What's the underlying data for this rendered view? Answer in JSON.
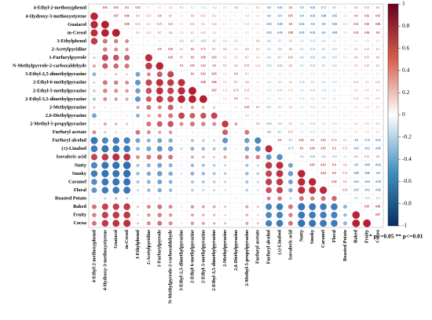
{
  "chart_data": {
    "type": "correlation",
    "variables": [
      "4-Ethyl-2-methoxyphenol",
      "4-Hydroxy-3-methoxystyrene",
      "Guaiacol",
      "m-Cresol",
      "3-Ethylphenol",
      "2-Acetylpyridine",
      "1-Furfurylpyrrole",
      "N-Methylpyrrole-2-carboxaldehyde",
      "3-Ethyl-2,5-dimethylpyrazine",
      "2-Ethyl-6-methylpyrazine",
      "2-Ethyl-5-methylpyrazine",
      "2-Ethyl-3,5-dimethylpyrazine",
      "2-Methylpyrazine",
      "2,6-Diethylpyrazine",
      "2-Methyl-5-propylpyrazine",
      "Furfuryl acetate",
      "Furfuryl alcohol",
      "(±)-Linalool",
      "Isovaleric acid",
      "Nutty",
      "Smoky",
      "Caramel",
      "Floral",
      "Roasted Potato",
      "Baked",
      "Fruity",
      "Cocoa"
    ],
    "matrix": [
      [],
      [
        0.95
      ],
      [
        0.93,
        0.97
      ],
      [
        0.9,
        0.96,
        0.98
      ],
      [
        0.85,
        0.6,
        0.55,
        0.5
      ],
      [
        0.2,
        0.55,
        0.5,
        0.45,
        0.1
      ],
      [
        0.3,
        0.8,
        0.75,
        0.7,
        -0.2,
        0.9
      ],
      [
        0.4,
        0.7,
        0.65,
        0.6,
        0.1,
        0.85,
        0.95
      ],
      [
        -0.5,
        0.2,
        0.3,
        0.25,
        -0.6,
        0.5,
        0.7,
        0.8
      ],
      [
        -0.3,
        0.6,
        0.55,
        0.5,
        -0.7,
        0.8,
        0.9,
        0.85,
        0.9
      ],
      [
        -0.35,
        0.55,
        0.5,
        0.45,
        -0.65,
        0.75,
        0.88,
        0.82,
        0.92,
        0.98
      ],
      [
        -0.4,
        0.5,
        0.45,
        0.4,
        -0.7,
        0.7,
        0.85,
        0.8,
        0.95,
        0.96,
        0.97
      ],
      [
        0.3,
        0.2,
        0.15,
        0.1,
        0.4,
        0.6,
        0.5,
        0.7,
        0.3,
        0.4,
        0.35,
        0.3
      ],
      [
        -0.6,
        0.1,
        0.15,
        0.2,
        -0.5,
        0.4,
        0.5,
        0.6,
        0.8,
        0.7,
        0.75,
        0.8,
        0.2
      ],
      [
        0.2,
        0.4,
        0.35,
        0.3,
        0.1,
        0.6,
        0.7,
        0.75,
        0.5,
        0.6,
        0.55,
        0.5,
        0.85,
        0.4
      ],
      [
        0.5,
        0.3,
        0.25,
        0.2,
        0.6,
        0.5,
        0.4,
        0.45,
        0.1,
        0.2,
        0.15,
        0.1,
        0.7,
        0.2,
        0.6
      ],
      [
        -0.9,
        -0.8,
        -0.85,
        -0.82,
        -0.6,
        -0.5,
        -0.6,
        -0.55,
        -0.2,
        -0.4,
        -0.35,
        -0.3,
        -0.7,
        -0.1,
        -0.65,
        -0.8
      ],
      [
        -0.85,
        -0.9,
        -0.88,
        -0.86,
        -0.5,
        -0.6,
        -0.7,
        -0.65,
        -0.3,
        -0.5,
        -0.45,
        -0.4,
        -0.5,
        -0.2,
        -0.6,
        -0.7,
        0.9
      ],
      [
        0.8,
        0.85,
        0.9,
        0.88,
        0.5,
        0.6,
        0.65,
        0.6,
        0.2,
        0.4,
        0.35,
        0.3,
        0.4,
        0.1,
        0.5,
        0.55,
        -0.7,
        -0.75
      ],
      [
        -0.8,
        -0.9,
        -0.92,
        -0.95,
        -0.4,
        -0.5,
        -0.6,
        -0.5,
        -0.2,
        -0.45,
        -0.4,
        -0.35,
        -0.3,
        -0.1,
        -0.4,
        -0.3,
        0.85,
        0.9,
        -0.6
      ],
      [
        -0.85,
        -0.92,
        -0.9,
        -0.93,
        -0.45,
        -0.55,
        -0.65,
        -0.55,
        -0.25,
        -0.5,
        -0.45,
        -0.4,
        -0.35,
        -0.15,
        -0.45,
        -0.35,
        0.8,
        0.88,
        -0.65,
        0.95
      ],
      [
        -0.75,
        -0.88,
        -0.9,
        -0.9,
        -0.4,
        -0.5,
        -0.6,
        -0.5,
        -0.2,
        -0.4,
        -0.38,
        -0.35,
        -0.3,
        -0.1,
        -0.4,
        -0.3,
        0.82,
        0.85,
        -0.6,
        0.93,
        0.94
      ],
      [
        -0.7,
        -0.85,
        -0.86,
        -0.88,
        -0.3,
        -0.45,
        -0.55,
        -0.45,
        -0.15,
        -0.35,
        -0.3,
        -0.3,
        -0.25,
        -0.05,
        -0.35,
        -0.25,
        0.75,
        0.8,
        -0.55,
        0.9,
        0.9,
        0.92
      ],
      [
        -0.2,
        -0.3,
        -0.35,
        -0.3,
        -0.1,
        -0.2,
        -0.25,
        -0.2,
        0.1,
        -0.1,
        -0.05,
        0,
        -0.1,
        0.2,
        -0.15,
        -0.1,
        0.5,
        0.55,
        -0.3,
        0.6,
        0.55,
        0.6,
        0.65
      ],
      [
        0.6,
        0.8,
        0.82,
        0.85,
        0.3,
        0.5,
        0.6,
        0.5,
        0.2,
        0.45,
        0.4,
        0.38,
        0.3,
        0.1,
        0.4,
        0.3,
        -0.8,
        -0.85,
        0.6,
        -0.9,
        -0.88,
        -0.85,
        -0.85,
        -0.5
      ],
      [
        0.55,
        0.82,
        0.85,
        0.86,
        0.25,
        0.45,
        0.55,
        0.45,
        0.15,
        0.4,
        0.35,
        0.33,
        0.25,
        0.05,
        0.35,
        0.25,
        -0.78,
        -0.82,
        0.55,
        -0.88,
        -0.86,
        -0.84,
        -0.82,
        -0.45,
        0.95
      ],
      [
        0.6,
        0.85,
        0.88,
        0.9,
        0.3,
        0.5,
        0.6,
        0.5,
        0.2,
        0.45,
        0.4,
        0.35,
        0.3,
        0.1,
        0.4,
        0.3,
        -0.82,
        -0.86,
        0.6,
        -0.92,
        -0.9,
        -0.88,
        -0.86,
        -0.5,
        0.96,
        0.97
      ]
    ],
    "clim": [
      -1,
      1
    ],
    "colorbar_ticks": [
      1,
      0.8,
      0.6,
      0.4,
      0.2,
      0,
      -0.2,
      -0.4,
      -0.6,
      -0.8,
      -1
    ],
    "colors": [
      "#2166ac",
      "#ffffff",
      "#b2182b"
    ],
    "note": "* p<=0.05 ** p<=0.01"
  }
}
